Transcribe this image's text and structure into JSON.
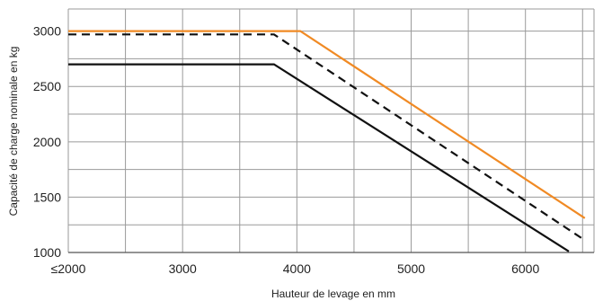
{
  "chart_data": {
    "type": "line",
    "xlabel": "Hauteur de levage en mm",
    "ylabel": "Capacité de charge nominale en kg",
    "xlim": [
      2000,
      6600
    ],
    "ylim": [
      1000,
      3200
    ],
    "x_ticks": [
      2000,
      3000,
      4000,
      5000,
      6000
    ],
    "x_tick_labels": [
      "≤2000",
      "3000",
      "4000",
      "5000",
      "6000"
    ],
    "y_ticks": [
      1000,
      1500,
      2000,
      2500,
      3000
    ],
    "y_tick_labels": [
      "1000",
      "1500",
      "2000",
      "2500",
      "3000"
    ],
    "grid": true,
    "series": [
      {
        "color": "#f08a24",
        "dash": "solid",
        "x": [
          2000,
          4030,
          6520
        ],
        "y": [
          3000,
          3000,
          1310
        ]
      },
      {
        "color": "#111111",
        "dash": "dashed",
        "x": [
          2000,
          3800,
          6520
        ],
        "y": [
          2970,
          2970,
          1110
        ]
      },
      {
        "color": "#111111",
        "dash": "solid",
        "x": [
          2000,
          3800,
          6380
        ],
        "y": [
          2700,
          2700,
          1010
        ]
      }
    ]
  }
}
